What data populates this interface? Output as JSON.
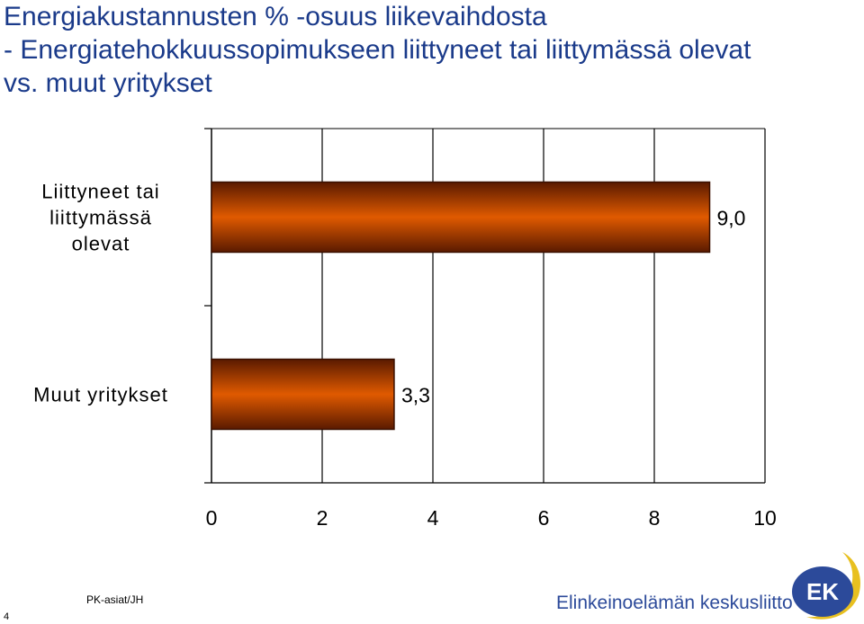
{
  "title": {
    "line1": "Energiakustannusten % -osuus liikevaihdosta",
    "line2": "- Energiatehokkuussopimukseen liittyneet tai liittymässä olevat",
    "line3": "vs. muut yritykset"
  },
  "chart_data": {
    "type": "bar",
    "orientation": "horizontal",
    "categories": [
      "Liittyneet tai liittymässä olevat",
      "Muut yritykset"
    ],
    "category_lines": [
      [
        "Liittyneet tai",
        "liittymässä",
        "olevat"
      ],
      [
        "Muut yritykset"
      ]
    ],
    "values": [
      9.0,
      3.3
    ],
    "value_labels": [
      "9,0",
      "3,3"
    ],
    "xlim": [
      0,
      10
    ],
    "x_ticks": [
      0,
      2,
      4,
      6,
      8,
      10
    ],
    "x_tick_labels": [
      "0",
      "2",
      "4",
      "6",
      "8",
      "10"
    ],
    "grid": true,
    "bar_color": "#e05a00",
    "bar_dark_color": "#5a1a00"
  },
  "footer": {
    "source": "PK-asiat/JH",
    "page_number": "4",
    "organization": "Elinkeinoelämän keskusliitto",
    "logo_text": "EK"
  },
  "colors": {
    "title": "#1a3a8a",
    "organization": "#2c4a9a",
    "logo_blue": "#2c4a9a",
    "logo_yellow": "#e8c020"
  }
}
